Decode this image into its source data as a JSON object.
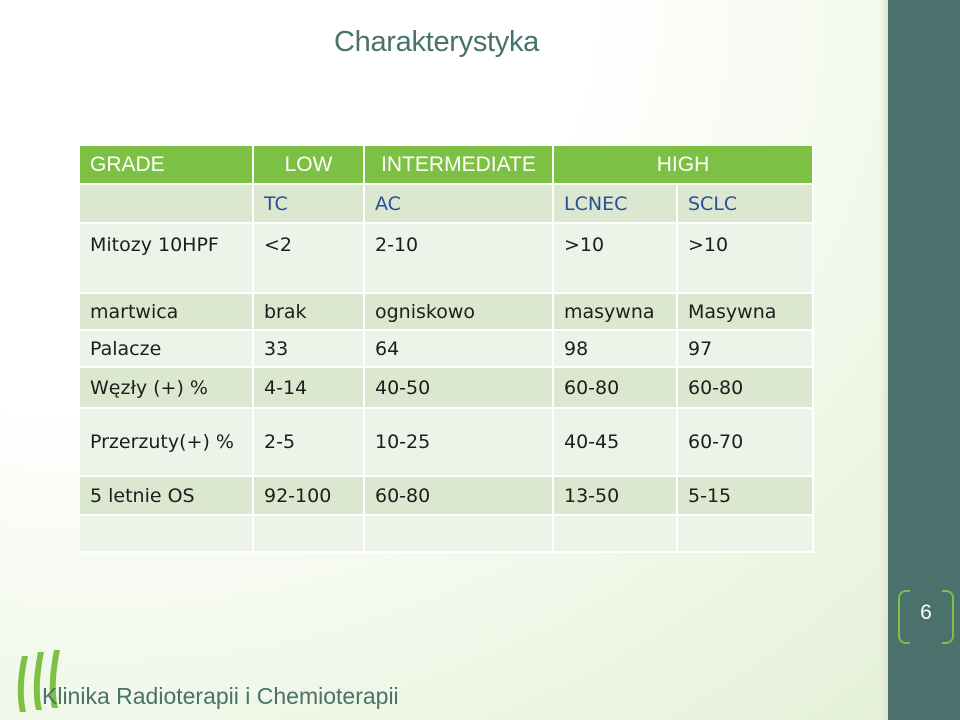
{
  "title": "Charakterystyka",
  "table": {
    "header": [
      "GRADE",
      "LOW",
      "INTERMEDIATE",
      "HIGH"
    ],
    "subheader": [
      "",
      "TC",
      "AC",
      "LCNEC",
      "SCLC"
    ],
    "rows": [
      [
        "Mitozy 10HPF",
        "<2",
        "2-10",
        ">10",
        ">10"
      ],
      [
        "martwica",
        "brak",
        "ogniskowo",
        "masywna",
        "Masywna"
      ],
      [
        "Palacze",
        "33",
        "64",
        "98",
        "97"
      ],
      [
        "Węzły (+) %",
        "4-14",
        "40-50",
        "60-80",
        "60-80"
      ],
      [
        "Przerzuty(+) %",
        "2-5",
        "10-25",
        "40-45",
        "60-70"
      ],
      [
        "5 letnie OS",
        "92-100",
        "60-80",
        "13-50",
        "5-15"
      ],
      [
        "",
        "",
        "",
        "",
        ""
      ]
    ]
  },
  "slide_number": "6",
  "footer": "Klinika Radioterapii i Chemioterapii",
  "colors": {
    "accent_green": "#7cc044",
    "teal": "#4a716b",
    "row_dark": "#dbe8cf",
    "row_light": "#edf3e8"
  },
  "icons": [
    "clinic-logo-icon"
  ]
}
